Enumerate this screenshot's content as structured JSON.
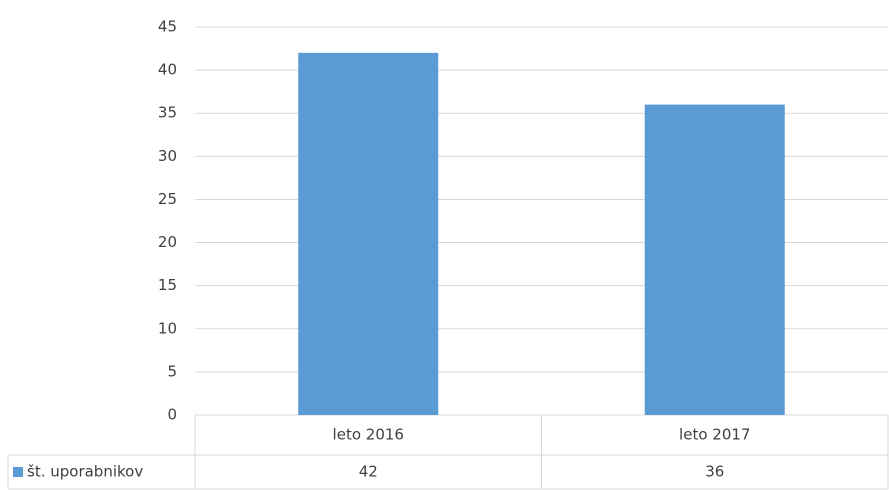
{
  "chart_data": {
    "type": "bar",
    "categories": [
      "leto 2016",
      "leto 2017"
    ],
    "series": [
      {
        "name": "št. uporabnikov",
        "color": "#5b9bd5",
        "values": [
          42,
          36
        ]
      }
    ],
    "ylim": [
      0,
      45
    ],
    "yticks": [
      0,
      5,
      10,
      15,
      20,
      25,
      30,
      35,
      40,
      45
    ],
    "grid": true,
    "data_table": true
  }
}
